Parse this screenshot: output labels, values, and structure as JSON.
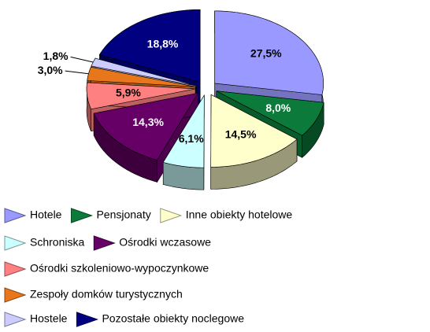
{
  "chart_data": {
    "type": "pie3d",
    "series": [
      {
        "name": "Hotele",
        "color": "#9999ff",
        "values": [
          27.5
        ],
        "value_labels": [
          "27,5%"
        ]
      },
      {
        "name": "Pensjonaty",
        "color": "#0b7a3a",
        "values": [
          8.0
        ],
        "value_labels": [
          "8,0%"
        ]
      },
      {
        "name": "Inne obiekty hotelowe",
        "color": "#ffffcc",
        "values": [
          14.5
        ],
        "value_labels": [
          "14,5%"
        ]
      },
      {
        "name": "Schroniska",
        "color": "#ccffff",
        "values": [
          6.1
        ],
        "value_labels": [
          "6,1%"
        ]
      },
      {
        "name": "Ośrodki wczasowe",
        "color": "#660066",
        "values": [
          14.3
        ],
        "value_labels": [
          "14,3%"
        ]
      },
      {
        "name": "Ośrodki szkoleniowo-wypoczynkowe",
        "color": "#ff8080",
        "values": [
          5.9
        ],
        "value_labels": [
          "5,9%"
        ]
      },
      {
        "name": "Zespoły domków turystycznych",
        "color": "#e8761a",
        "values": [
          3.0
        ],
        "value_labels": [
          "3,0%"
        ]
      },
      {
        "name": "Hostele",
        "color": "#ccccff",
        "values": [
          1.8
        ],
        "value_labels": [
          "1,8%"
        ]
      },
      {
        "name": "Pozostałe obiekty noclegowe",
        "color": "#000080",
        "values": [
          18.8
        ],
        "value_labels": [
          "18,8%"
        ]
      }
    ]
  }
}
